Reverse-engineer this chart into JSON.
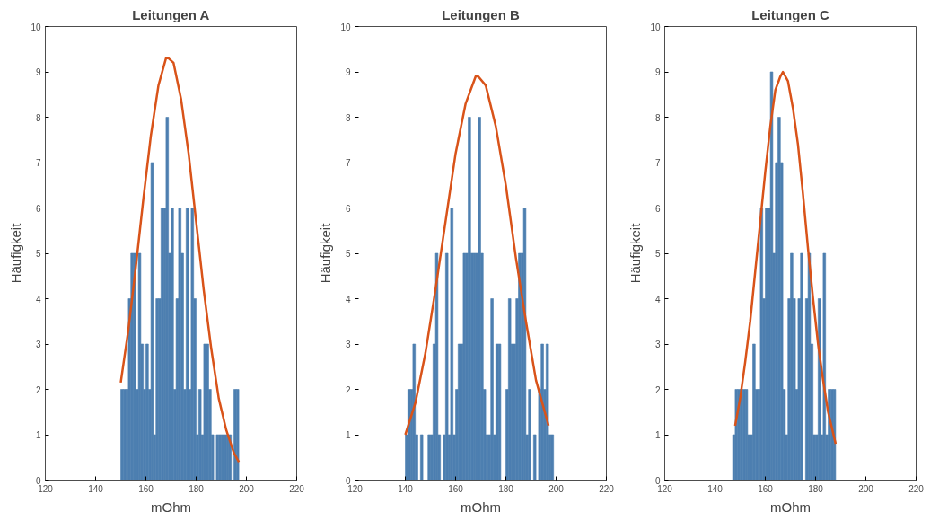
{
  "chart_data": [
    {
      "type": "histogram",
      "title": "Leitungen A",
      "xlabel": "mOhm",
      "ylabel": "Häufigkeit",
      "xlim": [
        120,
        220
      ],
      "xticks": [
        120,
        140,
        160,
        180,
        200,
        220
      ],
      "ylim": [
        0,
        10
      ],
      "yticks": [
        0,
        1,
        2,
        3,
        4,
        5,
        6,
        7,
        8,
        9,
        10
      ],
      "grid": false,
      "series": [
        {
          "color": "#4d7fb0",
          "bins": [
            150,
            151,
            152,
            153,
            154,
            155,
            156,
            157,
            158,
            159,
            160,
            161,
            162,
            163,
            164,
            165,
            166,
            167,
            168,
            169,
            170,
            171,
            172,
            173,
            174,
            175,
            176,
            177,
            178,
            179,
            180,
            181,
            182,
            183,
            184,
            185,
            186,
            187,
            188,
            189,
            190,
            191,
            192,
            193,
            194,
            195,
            196,
            197
          ],
          "values": [
            2,
            2,
            2,
            4,
            5,
            5,
            2,
            5,
            3,
            2,
            3,
            2,
            7,
            1,
            4,
            4,
            6,
            6,
            8,
            5,
            6,
            2,
            4,
            6,
            5,
            2,
            6,
            2,
            6,
            4,
            1,
            2,
            1,
            3,
            3,
            2,
            1,
            0,
            1,
            1,
            1,
            1,
            1,
            1,
            0,
            2,
            2
          ]
        },
        {
          "type": "line",
          "color": "#d95319",
          "x": [
            150,
            153,
            156,
            159,
            162,
            165,
            168,
            169,
            171,
            174,
            177,
            180,
            183,
            186,
            189,
            192,
            195,
            197
          ],
          "values": [
            2.15,
            3.3,
            4.7,
            6.2,
            7.6,
            8.7,
            9.3,
            9.3,
            9.2,
            8.4,
            7.2,
            5.7,
            4.2,
            2.9,
            1.8,
            1.1,
            0.6,
            0.4
          ]
        }
      ]
    },
    {
      "type": "histogram",
      "title": "Leitungen B",
      "xlabel": "mOhm",
      "ylabel": "Häufigkeit",
      "xlim": [
        120,
        220
      ],
      "xticks": [
        120,
        140,
        160,
        180,
        200,
        220
      ],
      "ylim": [
        0,
        10
      ],
      "yticks": [
        0,
        1,
        2,
        3,
        4,
        5,
        6,
        7,
        8,
        9,
        10
      ],
      "grid": false,
      "series": [
        {
          "color": "#4d7fb0",
          "bins": [
            140,
            141,
            142,
            143,
            144,
            145,
            146,
            147,
            148,
            149,
            150,
            151,
            152,
            153,
            154,
            155,
            156,
            157,
            158,
            159,
            160,
            161,
            162,
            163,
            164,
            165,
            166,
            167,
            168,
            169,
            170,
            171,
            172,
            173,
            174,
            175,
            176,
            177,
            178,
            179,
            180,
            181,
            182,
            183,
            184,
            185,
            186,
            187,
            188,
            189,
            190,
            191,
            192,
            193,
            194,
            195,
            196,
            197,
            198,
            199
          ],
          "values": [
            1,
            2,
            2,
            3,
            1,
            0,
            1,
            0,
            0,
            1,
            1,
            3,
            5,
            1,
            0,
            1,
            5,
            1,
            6,
            1,
            2,
            3,
            3,
            5,
            5,
            8,
            5,
            5,
            5,
            8,
            5,
            2,
            1,
            1,
            4,
            1,
            3,
            3,
            0,
            0,
            2,
            4,
            3,
            3,
            4,
            5,
            5,
            6,
            1,
            2,
            0,
            1,
            0,
            2,
            3,
            2,
            3,
            1,
            1
          ]
        },
        {
          "type": "line",
          "color": "#d95319",
          "x": [
            140,
            144,
            148,
            152,
            156,
            160,
            164,
            168,
            169,
            172,
            176,
            180,
            184,
            188,
            192,
            197
          ],
          "values": [
            1.0,
            1.7,
            2.8,
            4.2,
            5.7,
            7.2,
            8.3,
            8.9,
            8.9,
            8.7,
            7.8,
            6.5,
            4.9,
            3.5,
            2.2,
            1.2
          ]
        }
      ]
    },
    {
      "type": "histogram",
      "title": "Leitungen C",
      "xlabel": "mOhm",
      "ylabel": "Häufigkeit",
      "xlim": [
        120,
        220
      ],
      "xticks": [
        120,
        140,
        160,
        180,
        200,
        220
      ],
      "ylim": [
        0,
        10
      ],
      "yticks": [
        0,
        1,
        2,
        3,
        4,
        5,
        6,
        7,
        8,
        9,
        10
      ],
      "grid": false,
      "series": [
        {
          "color": "#4d7fb0",
          "bins": [
            147,
            148,
            149,
            150,
            151,
            152,
            153,
            154,
            155,
            156,
            157,
            158,
            159,
            160,
            161,
            162,
            163,
            164,
            165,
            166,
            167,
            168,
            169,
            170,
            171,
            172,
            173,
            174,
            175,
            176,
            177,
            178,
            179,
            180,
            181,
            182,
            183,
            184,
            185,
            186,
            187,
            188
          ],
          "values": [
            1,
            2,
            2,
            2,
            2,
            2,
            1,
            1,
            3,
            2,
            2,
            6,
            4,
            6,
            6,
            9,
            5,
            7,
            8,
            7,
            2,
            1,
            4,
            5,
            4,
            2,
            4,
            5,
            0,
            4,
            5,
            3,
            1,
            1,
            4,
            1,
            5,
            1,
            2,
            2,
            2
          ]
        },
        {
          "type": "line",
          "color": "#d95319",
          "x": [
            148,
            150,
            152,
            154,
            156,
            158,
            160,
            162,
            164,
            166,
            167,
            169,
            171,
            173,
            175,
            177,
            179,
            181,
            183,
            185,
            188
          ],
          "values": [
            1.2,
            1.8,
            2.6,
            3.5,
            4.6,
            5.7,
            6.8,
            7.8,
            8.6,
            8.9,
            9.0,
            8.8,
            8.2,
            7.4,
            6.3,
            5.1,
            4.0,
            3.0,
            2.2,
            1.5,
            0.8
          ]
        }
      ]
    }
  ]
}
